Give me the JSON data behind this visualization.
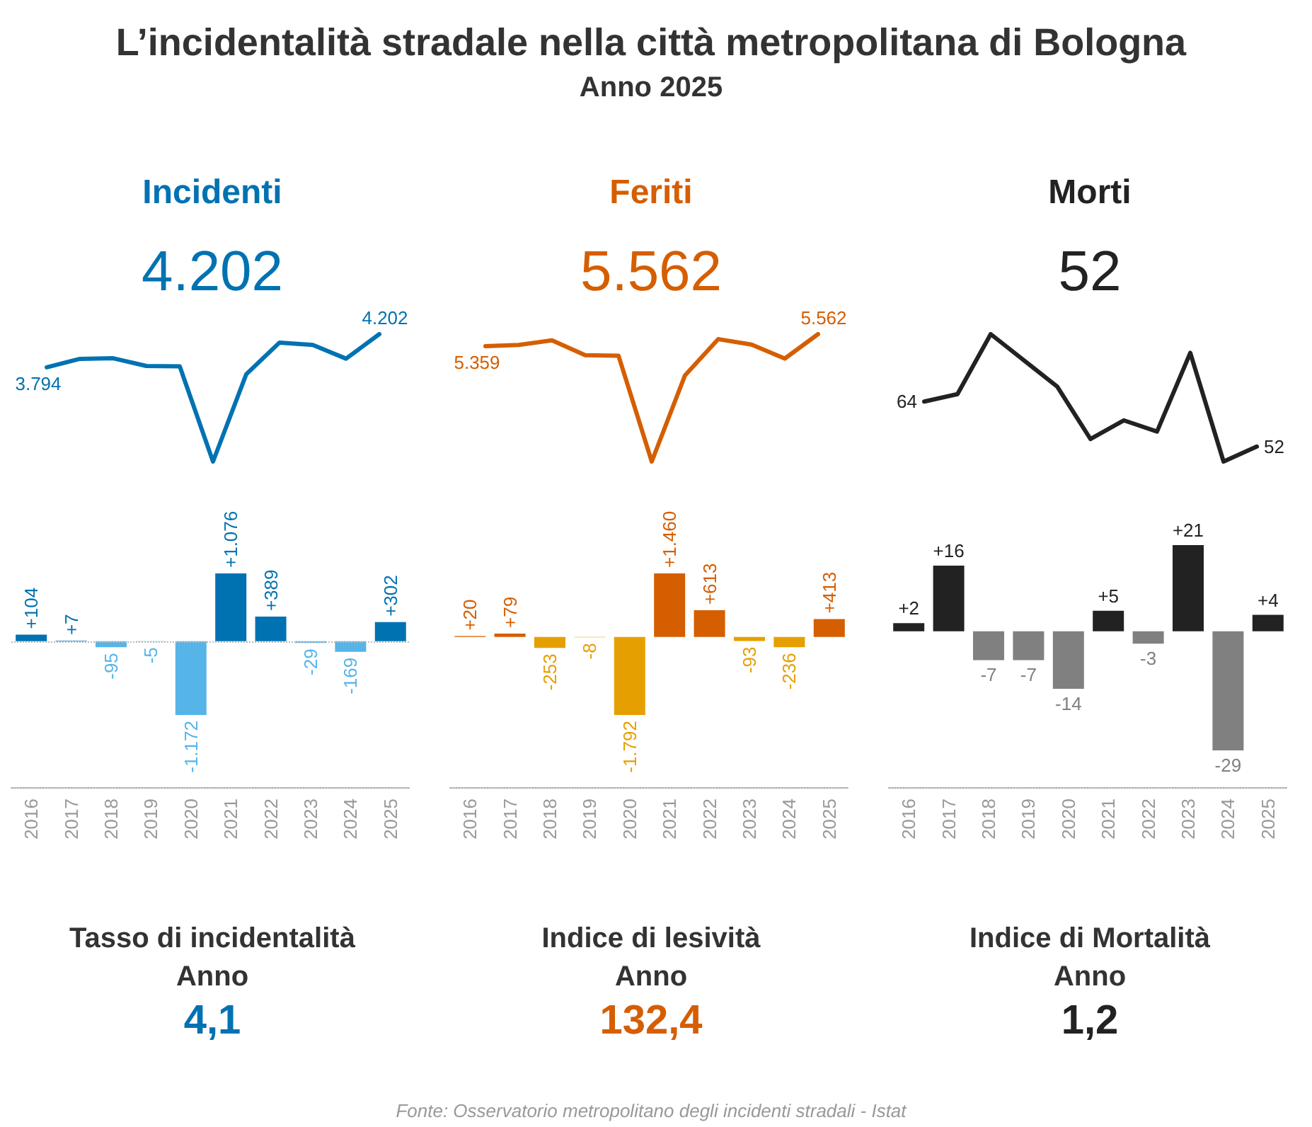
{
  "chart_data": [
    {
      "type": "other",
      "title": "L’incidentalità stradale nella città metropolitana di Bologna",
      "subtitle": "Anno 2025"
    },
    {
      "type": "line",
      "title": "Incidenti",
      "subtitle": "4.202",
      "categories": [
        null,
        null,
        null,
        null,
        null,
        null,
        null,
        null,
        null,
        null,
        null
      ],
      "tick_labels": false,
      "color": "#0072b2",
      "values": [
        3794,
        3898,
        3905,
        3810,
        3805,
        2633,
        3709,
        4098,
        4069,
        3900,
        4202
      ],
      "value_labels": [
        "3.794",
        null,
        null,
        null,
        null,
        null,
        null,
        null,
        null,
        null,
        "4.202"
      ]
    },
    {
      "type": "line",
      "title": "Feriti",
      "subtitle": "5.562",
      "categories": [
        null,
        null,
        null,
        null,
        null,
        null,
        null,
        null,
        null,
        null,
        null
      ],
      "tick_labels": false,
      "color": "#d55e00",
      "values": [
        5359,
        5379,
        5458,
        5205,
        5197,
        3405,
        4865,
        5478,
        5385,
        5149,
        5562
      ],
      "value_labels": [
        "5.359",
        null,
        null,
        null,
        null,
        null,
        null,
        null,
        null,
        null,
        "5.562"
      ]
    },
    {
      "type": "line",
      "title": "Morti",
      "subtitle": "52",
      "categories": [
        null,
        null,
        null,
        null,
        null,
        null,
        null,
        null,
        null,
        null,
        null
      ],
      "tick_labels": false,
      "color": "#222222",
      "values": [
        64,
        66,
        82,
        75,
        68,
        54,
        59,
        56,
        77,
        48,
        52
      ],
      "value_labels": [
        "64",
        null,
        null,
        null,
        null,
        null,
        null,
        null,
        null,
        null,
        "52"
      ]
    },
    {
      "type": "bar",
      "categories": [
        "2016",
        "2017",
        "2018",
        "2019",
        "2020",
        "2021",
        "2022",
        "2023",
        "2024",
        "2025"
      ],
      "tick_labels": "x",
      "values": [
        104,
        7,
        -95,
        -5,
        -1172,
        1076,
        389,
        -29,
        -169,
        302
      ],
      "colors": [
        "#0072b2",
        "#0072b2",
        "#56b4e9",
        "#56b4e9",
        "#56b4e9",
        "#0072b2",
        "#0072b2",
        "#56b4e9",
        "#56b4e9",
        "#0072b2"
      ],
      "value_labels": [
        "+104",
        "+7",
        "-95",
        "-5",
        "-1.172",
        "+1.076",
        "+389",
        "-29",
        "-169",
        "+302"
      ],
      "ref_lines": [
        {
          "axis": "y",
          "value": 0,
          "color": "#bbbbbb",
          "line_style": "dotted"
        }
      ]
    },
    {
      "type": "bar",
      "categories": [
        "2016",
        "2017",
        "2018",
        "2019",
        "2020",
        "2021",
        "2022",
        "2023",
        "2024",
        "2025"
      ],
      "tick_labels": "x",
      "values": [
        20,
        79,
        -253,
        -8,
        -1792,
        1460,
        613,
        -93,
        -236,
        413
      ],
      "colors": [
        "#d55e00",
        "#d55e00",
        "#e69f00",
        "#e69f00",
        "#e69f00",
        "#d55e00",
        "#d55e00",
        "#e69f00",
        "#e69f00",
        "#d55e00"
      ],
      "value_labels": [
        "+20",
        "+79",
        "-253",
        "-8",
        "-1.792",
        "+1.460",
        "+613",
        "-93",
        "-236",
        "+413"
      ]
    },
    {
      "type": "bar",
      "categories": [
        "2016",
        "2017",
        "2018",
        "2019",
        "2020",
        "2021",
        "2022",
        "2023",
        "2024",
        "2025"
      ],
      "tick_labels": "x",
      "values": [
        2,
        16,
        -7,
        -7,
        -14,
        5,
        -3,
        21,
        -29,
        4
      ],
      "colors": [
        "#222222",
        "#222222",
        "#808080",
        "#808080",
        "#808080",
        "#222222",
        "#808080",
        "#222222",
        "#808080",
        "#222222"
      ],
      "value_labels": [
        "+2",
        "+16",
        "-7",
        "-7",
        "-14",
        "+5",
        "-3",
        "+21",
        "-29",
        "+4"
      ]
    },
    {
      "type": "other",
      "title": "Tasso di incidentalità",
      "subtitle": "Anno",
      "annotations": [
        "4,1"
      ],
      "color": "#0072b2"
    },
    {
      "type": "other",
      "title": "Indice di lesività",
      "subtitle": "Anno",
      "annotations": [
        "132,4"
      ],
      "color": "#d55e00"
    },
    {
      "type": "other",
      "title": "Indice di Mortalità",
      "subtitle": "Anno",
      "annotations": [
        "1,2"
      ],
      "color": "#222222"
    },
    {
      "type": "other",
      "annotations": [
        "Fonte: Osservatorio metropolitano degli incidenti stradali - Istat"
      ]
    }
  ]
}
